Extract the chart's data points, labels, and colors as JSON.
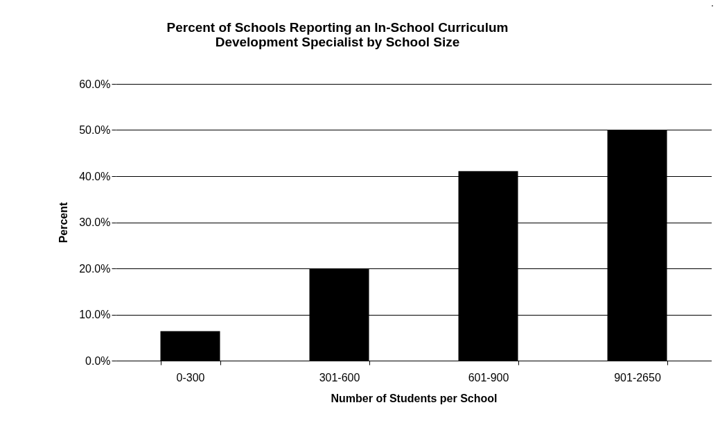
{
  "chart_data": {
    "type": "bar",
    "title": [
      "Percent of Schools Reporting an In-School Curriculum",
      "Development Specialist by School Size"
    ],
    "xlabel": "Number of Students per School",
    "ylabel": "Percent",
    "categories": [
      "0-300",
      "301-600",
      "601-900",
      "901-2650"
    ],
    "values": [
      6.4,
      20.0,
      41.1,
      50.0
    ],
    "color": "#000000",
    "ylim": [
      0,
      60
    ],
    "yticks": [
      {
        "value": 0,
        "label": "0.0%"
      },
      {
        "value": 10,
        "label": "10.0%"
      },
      {
        "value": 20,
        "label": "20.0%"
      },
      {
        "value": 30,
        "label": "30.0%"
      },
      {
        "value": 40,
        "label": "40.0%"
      },
      {
        "value": 50,
        "label": "50.0%"
      },
      {
        "value": 60,
        "label": "60.0%"
      }
    ],
    "grid": "y"
  }
}
